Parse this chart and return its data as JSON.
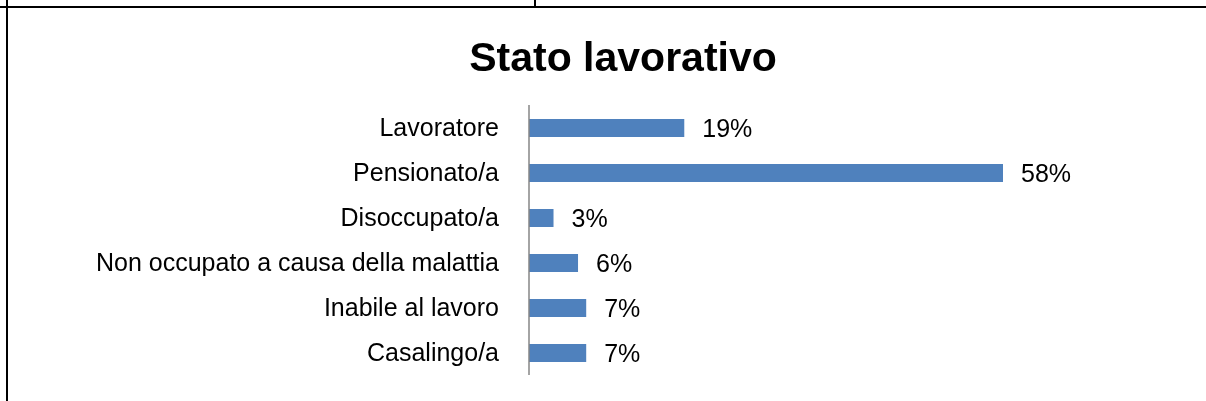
{
  "chart_data": {
    "type": "bar",
    "orientation": "horizontal",
    "title": "Stato lavorativo",
    "categories": [
      "Lavoratore",
      "Pensionato/a",
      "Disoccupato/a",
      "Non occupato a causa della malattia",
      "Inabile al lavoro",
      "Casalingo/a"
    ],
    "values": [
      19,
      58,
      3,
      6,
      7,
      7
    ],
    "value_labels": [
      "19%",
      "58%",
      "3%",
      "6%",
      "7%",
      "7%"
    ],
    "color": "#4f81bd"
  }
}
